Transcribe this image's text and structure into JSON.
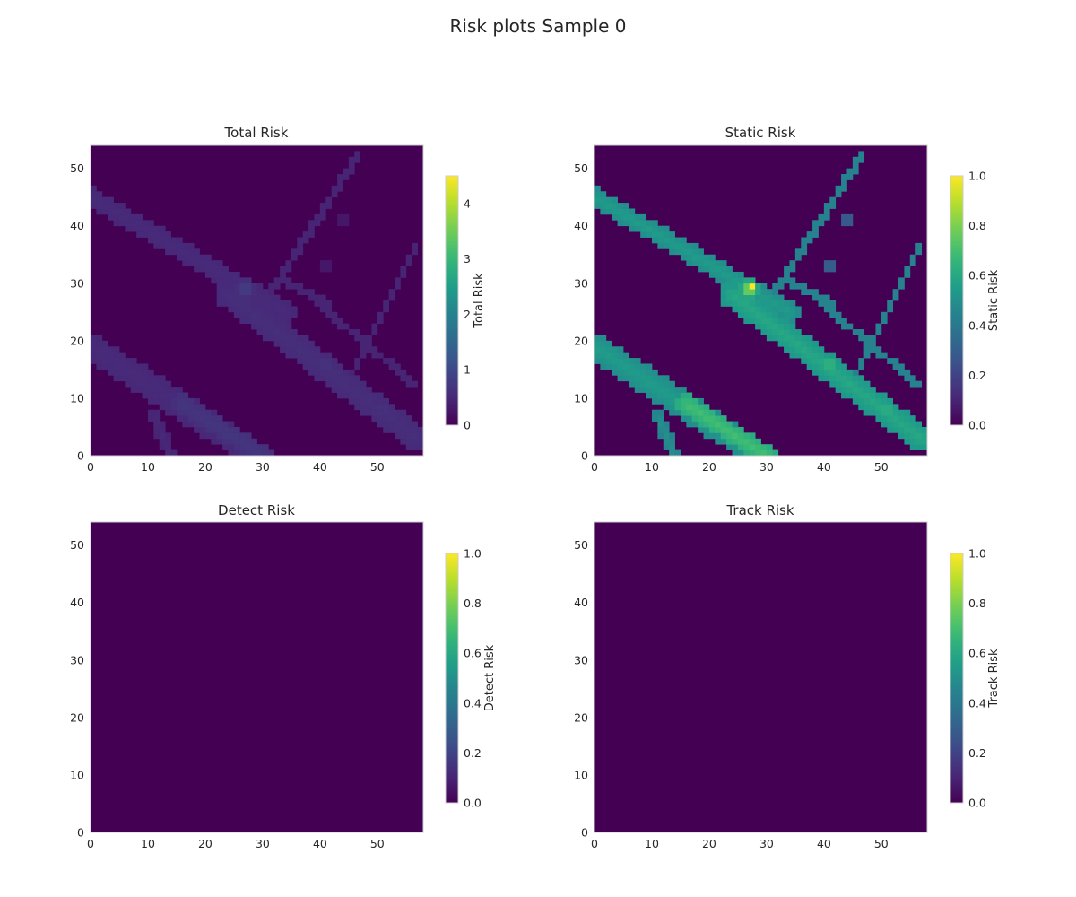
{
  "figure": {
    "suptitle": "Risk plots Sample 0"
  },
  "colors": {
    "viridis_low": "#440154",
    "viridis_mid": "#21918c",
    "viridis_high": "#fde725",
    "axis_border": "#cccccc",
    "text": "#262626"
  },
  "chart_data": [
    {
      "type": "heatmap",
      "title": "Total Risk",
      "colorbar_label": "Total Risk",
      "colormap": "viridis",
      "grid_size": [
        58,
        54
      ],
      "xlim": [
        0,
        58
      ],
      "ylim": [
        0,
        54
      ],
      "x_ticks": [
        0,
        10,
        20,
        30,
        40,
        50
      ],
      "y_ticks": [
        0,
        10,
        20,
        30,
        40,
        50
      ],
      "clim": [
        0,
        4.5
      ],
      "colorbar_ticks": [
        0,
        1,
        2,
        3,
        4
      ],
      "structures": {
        "bands": [
          [
            0,
            45,
            34,
            25,
            1.6,
            0.55
          ],
          [
            24,
            28,
            57,
            3,
            2.2,
            0.6
          ],
          [
            0,
            19,
            29,
            0,
            2.3,
            0.55
          ],
          [
            16,
            9,
            30,
            0,
            1.6,
            0.7
          ],
          [
            11,
            7,
            14,
            0,
            1.0,
            0.5
          ]
        ],
        "lines": [
          [
            30,
            26,
            47,
            53,
            0.45
          ],
          [
            45,
            13,
            57,
            37,
            0.45
          ],
          [
            39,
            27,
            57,
            12,
            0.45
          ],
          [
            33,
            31,
            42,
            26,
            0.45
          ]
        ],
        "blobs": [
          [
            27,
            29,
            1.6,
            0.9
          ],
          [
            41,
            16,
            1.5,
            0.75
          ],
          [
            51,
            8,
            1.3,
            0.75
          ],
          [
            53,
            5,
            1.2,
            0.7
          ],
          [
            44,
            41,
            1.2,
            0.35
          ],
          [
            41,
            33,
            1.4,
            0.35
          ]
        ]
      }
    },
    {
      "type": "heatmap",
      "title": "Static Risk",
      "colorbar_label": "Static Risk",
      "colormap": "viridis",
      "grid_size": [
        58,
        54
      ],
      "xlim": [
        0,
        58
      ],
      "ylim": [
        0,
        54
      ],
      "x_ticks": [
        0,
        10,
        20,
        30,
        40,
        50
      ],
      "y_ticks": [
        0,
        10,
        20,
        30,
        40,
        50
      ],
      "clim": [
        0,
        1.0
      ],
      "colorbar_ticks": [
        0.0,
        0.2,
        0.4,
        0.6,
        0.8,
        1.0
      ],
      "structures": {
        "bands": [
          [
            0,
            45,
            34,
            25,
            1.6,
            0.55
          ],
          [
            24,
            28,
            57,
            3,
            2.2,
            0.6
          ],
          [
            0,
            19,
            29,
            0,
            2.3,
            0.55
          ],
          [
            16,
            9,
            30,
            0,
            1.6,
            0.7
          ],
          [
            11,
            7,
            14,
            0,
            1.0,
            0.5
          ]
        ],
        "lines": [
          [
            30,
            26,
            47,
            53,
            0.45
          ],
          [
            45,
            13,
            57,
            37,
            0.45
          ],
          [
            39,
            27,
            57,
            12,
            0.45
          ],
          [
            33,
            31,
            42,
            26,
            0.45
          ]
        ],
        "blobs": [
          [
            27,
            29,
            1.6,
            0.9
          ],
          [
            41,
            16,
            1.5,
            0.75
          ],
          [
            51,
            8,
            1.3,
            0.75
          ],
          [
            53,
            5,
            1.2,
            0.7
          ],
          [
            44,
            41,
            1.2,
            0.35
          ],
          [
            41,
            33,
            1.4,
            0.35
          ]
        ],
        "hotspot": [
          27,
          29,
          1.0
        ]
      }
    },
    {
      "type": "heatmap",
      "title": "Detect Risk",
      "colorbar_label": "Detect Risk",
      "colormap": "viridis",
      "grid_size": [
        58,
        54
      ],
      "xlim": [
        0,
        58
      ],
      "ylim": [
        0,
        54
      ],
      "x_ticks": [
        0,
        10,
        20,
        30,
        40,
        50
      ],
      "y_ticks": [
        0,
        10,
        20,
        30,
        40,
        50
      ],
      "clim": [
        0,
        1.0
      ],
      "colorbar_ticks": [
        0.0,
        0.2,
        0.4,
        0.6,
        0.8,
        1.0
      ],
      "uniform_value": 0
    },
    {
      "type": "heatmap",
      "title": "Track Risk",
      "colorbar_label": "Track Risk",
      "colormap": "viridis",
      "grid_size": [
        58,
        54
      ],
      "xlim": [
        0,
        58
      ],
      "ylim": [
        0,
        54
      ],
      "x_ticks": [
        0,
        10,
        20,
        30,
        40,
        50
      ],
      "y_ticks": [
        0,
        10,
        20,
        30,
        40,
        50
      ],
      "clim": [
        0,
        1.0
      ],
      "colorbar_ticks": [
        0.0,
        0.2,
        0.4,
        0.6,
        0.8,
        1.0
      ],
      "uniform_value": 0
    }
  ]
}
